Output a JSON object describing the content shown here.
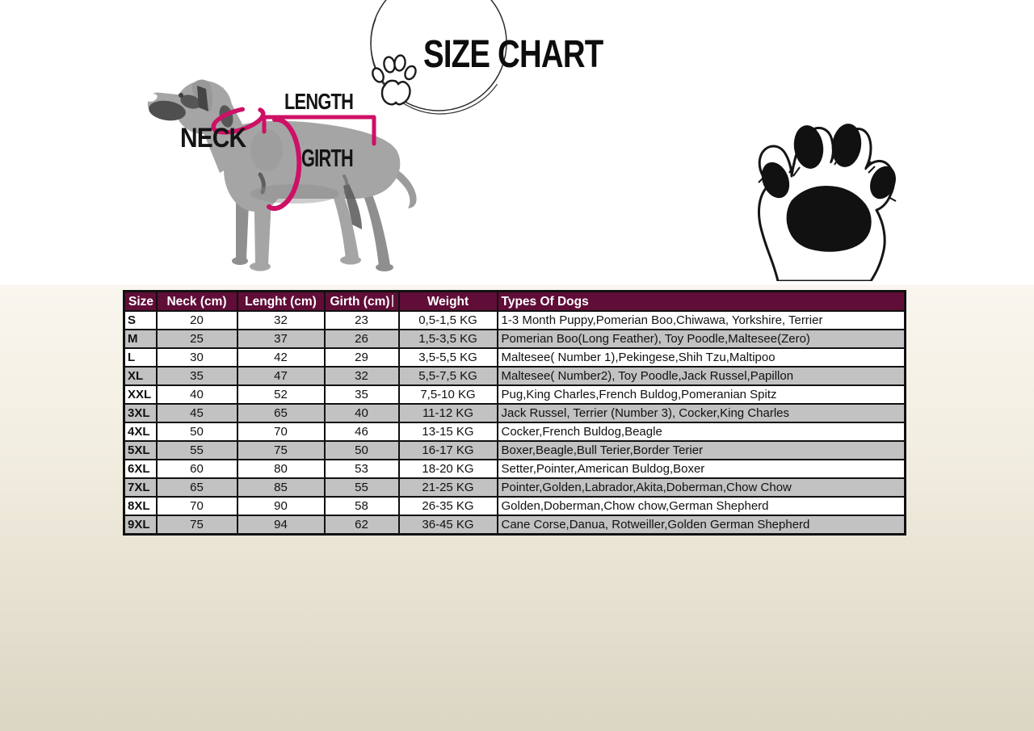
{
  "title": "SIZE CHART",
  "diagram": {
    "length_label": "LENGTH",
    "neck_label": "NECK",
    "girth_label": "GIRTH",
    "dog_color": "#a5a5a5",
    "measurement_color": "#ce1066"
  },
  "decorations": {
    "title_circle_icon": "hand-drawn-circle-icon",
    "title_paw_icon": "paw-outline-icon",
    "corner_paw_icon": "paw-large-icon"
  },
  "background": {
    "top": "#ffffff",
    "bottom": "#dbd5c4"
  },
  "table": {
    "header_bg": "#600d37",
    "header_text_color": "#ffffff",
    "alt_row_bg": "#c2c2c2",
    "headers": [
      "Size",
      "Neck (cm)",
      "Lenght (cm)",
      "Girth (cm)",
      "Weight",
      "Types Of Dogs"
    ],
    "rows": [
      [
        "S",
        "20",
        "32",
        "23",
        "0,5-1,5 KG",
        "1-3 Month Puppy,Pomerian Boo,Chiwawa, Yorkshire, Terrier"
      ],
      [
        "M",
        "25",
        "37",
        "26",
        "1,5-3,5 KG",
        "Pomerian Boo(Long Feather), Toy Poodle,Maltesee(Zero)"
      ],
      [
        "L",
        "30",
        "42",
        "29",
        "3,5-5,5 KG",
        "Maltesee( Number 1),Pekingese,Shih Tzu,Maltipoo"
      ],
      [
        "XL",
        "35",
        "47",
        "32",
        "5,5-7,5 KG",
        "Maltesee( Number2), Toy Poodle,Jack Russel,Papillon"
      ],
      [
        "XXL",
        "40",
        "52",
        "35",
        "7,5-10 KG",
        "Pug,King Charles,French Buldog,Pomeranian Spitz"
      ],
      [
        "3XL",
        "45",
        "65",
        "40",
        "11-12 KG",
        "Jack Russel, Terrier (Number 3), Cocker,King Charles"
      ],
      [
        "4XL",
        "50",
        "70",
        "46",
        "13-15 KG",
        "Cocker,French Buldog,Beagle"
      ],
      [
        "5XL",
        "55",
        "75",
        "50",
        "16-17 KG",
        "Boxer,Beagle,Bull Terier,Border Terier"
      ],
      [
        "6XL",
        "60",
        "80",
        "53",
        "18-20 KG",
        "Setter,Pointer,American Buldog,Boxer"
      ],
      [
        "7XL",
        "65",
        "85",
        "55",
        "21-25 KG",
        "Pointer,Golden,Labrador,Akita,Doberman,Chow Chow"
      ],
      [
        "8XL",
        "70",
        "90",
        "58",
        "26-35 KG",
        "Golden,Doberman,Chow chow,German Shepherd"
      ],
      [
        "9XL",
        "75",
        "94",
        "62",
        "36-45 KG",
        "Cane Corse,Danua, Rotweiller,Golden German Shepherd"
      ]
    ]
  }
}
